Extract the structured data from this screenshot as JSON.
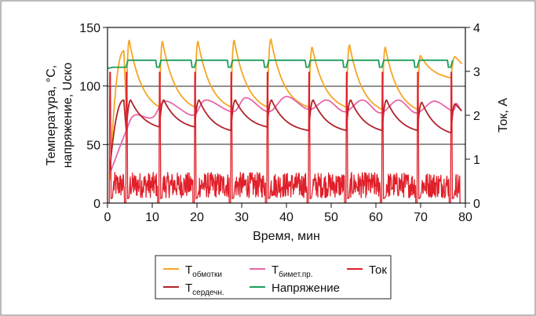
{
  "chart_data": {
    "type": "line",
    "xlabel": "Время, мин",
    "ylabel_left_line1": "Температура, °С,",
    "ylabel_left_line2": "напряжение, Uско",
    "ylabel_right": "Ток, А",
    "xlim": [
      0,
      80
    ],
    "ylim_left": [
      0,
      150
    ],
    "ylim_right": [
      0,
      4
    ],
    "x_ticks": [
      "0",
      "10",
      "20",
      "30",
      "40",
      "50",
      "60",
      "70",
      "80"
    ],
    "y_left_ticks": [
      "0",
      "50",
      "100",
      "150"
    ],
    "y_right_ticks": [
      "0",
      "1",
      "2",
      "3",
      "4"
    ],
    "grid": "horizontal",
    "legend_position": "bottom",
    "cycle_starts_min": [
      0.5,
      4.2,
      11.6,
      19.5,
      27.6,
      35.7,
      45.0,
      53.4,
      61.4,
      69.3,
      76.8
    ],
    "series": [
      {
        "key": "winding",
        "legend": "T",
        "sub": "обмотки",
        "color": "#f5a623",
        "axis": "left",
        "peaks": [
          130,
          139,
          138,
          138,
          139,
          140,
          133,
          135,
          133,
          126
        ],
        "troughs": [
          20,
          83,
          82,
          82,
          82,
          82,
          82,
          82,
          80,
          80,
          107
        ]
      },
      {
        "key": "core",
        "legend": "T",
        "sub": "сердечн.",
        "color": "#b0232a",
        "axis": "left",
        "peaks": [
          88,
          88,
          88,
          88,
          88,
          88,
          88,
          88,
          88,
          86
        ],
        "troughs": [
          28,
          62,
          65,
          65,
          62,
          65,
          62,
          62,
          62,
          62,
          60
        ]
      },
      {
        "key": "bimetal",
        "legend": "T",
        "sub": "бимет.пр.",
        "color": "#e766a8",
        "axis": "left",
        "points": [
          [
            0.5,
            25
          ],
          [
            4,
            60
          ],
          [
            6,
            75
          ],
          [
            10,
            73
          ],
          [
            13,
            87
          ],
          [
            19,
            75
          ],
          [
            22,
            88
          ],
          [
            28,
            78
          ],
          [
            31,
            90
          ],
          [
            36,
            78
          ],
          [
            40,
            91
          ],
          [
            45,
            80
          ],
          [
            49,
            88
          ],
          [
            53,
            78
          ],
          [
            57,
            88
          ],
          [
            61,
            77
          ],
          [
            65,
            88
          ],
          [
            69,
            77
          ],
          [
            73,
            87
          ],
          [
            77,
            79
          ],
          [
            78,
            85
          ],
          [
            79,
            79
          ]
        ]
      },
      {
        "key": "voltage",
        "legend": "Напряжение",
        "color": "#1a9e5c",
        "axis": "left",
        "high": 122,
        "low": 116
      },
      {
        "key": "current",
        "legend": "Ток",
        "color": "#e0202a",
        "axis": "right",
        "spike_high": 2.98,
        "noise_low": 0.12,
        "noise_high": 0.7
      }
    ]
  }
}
